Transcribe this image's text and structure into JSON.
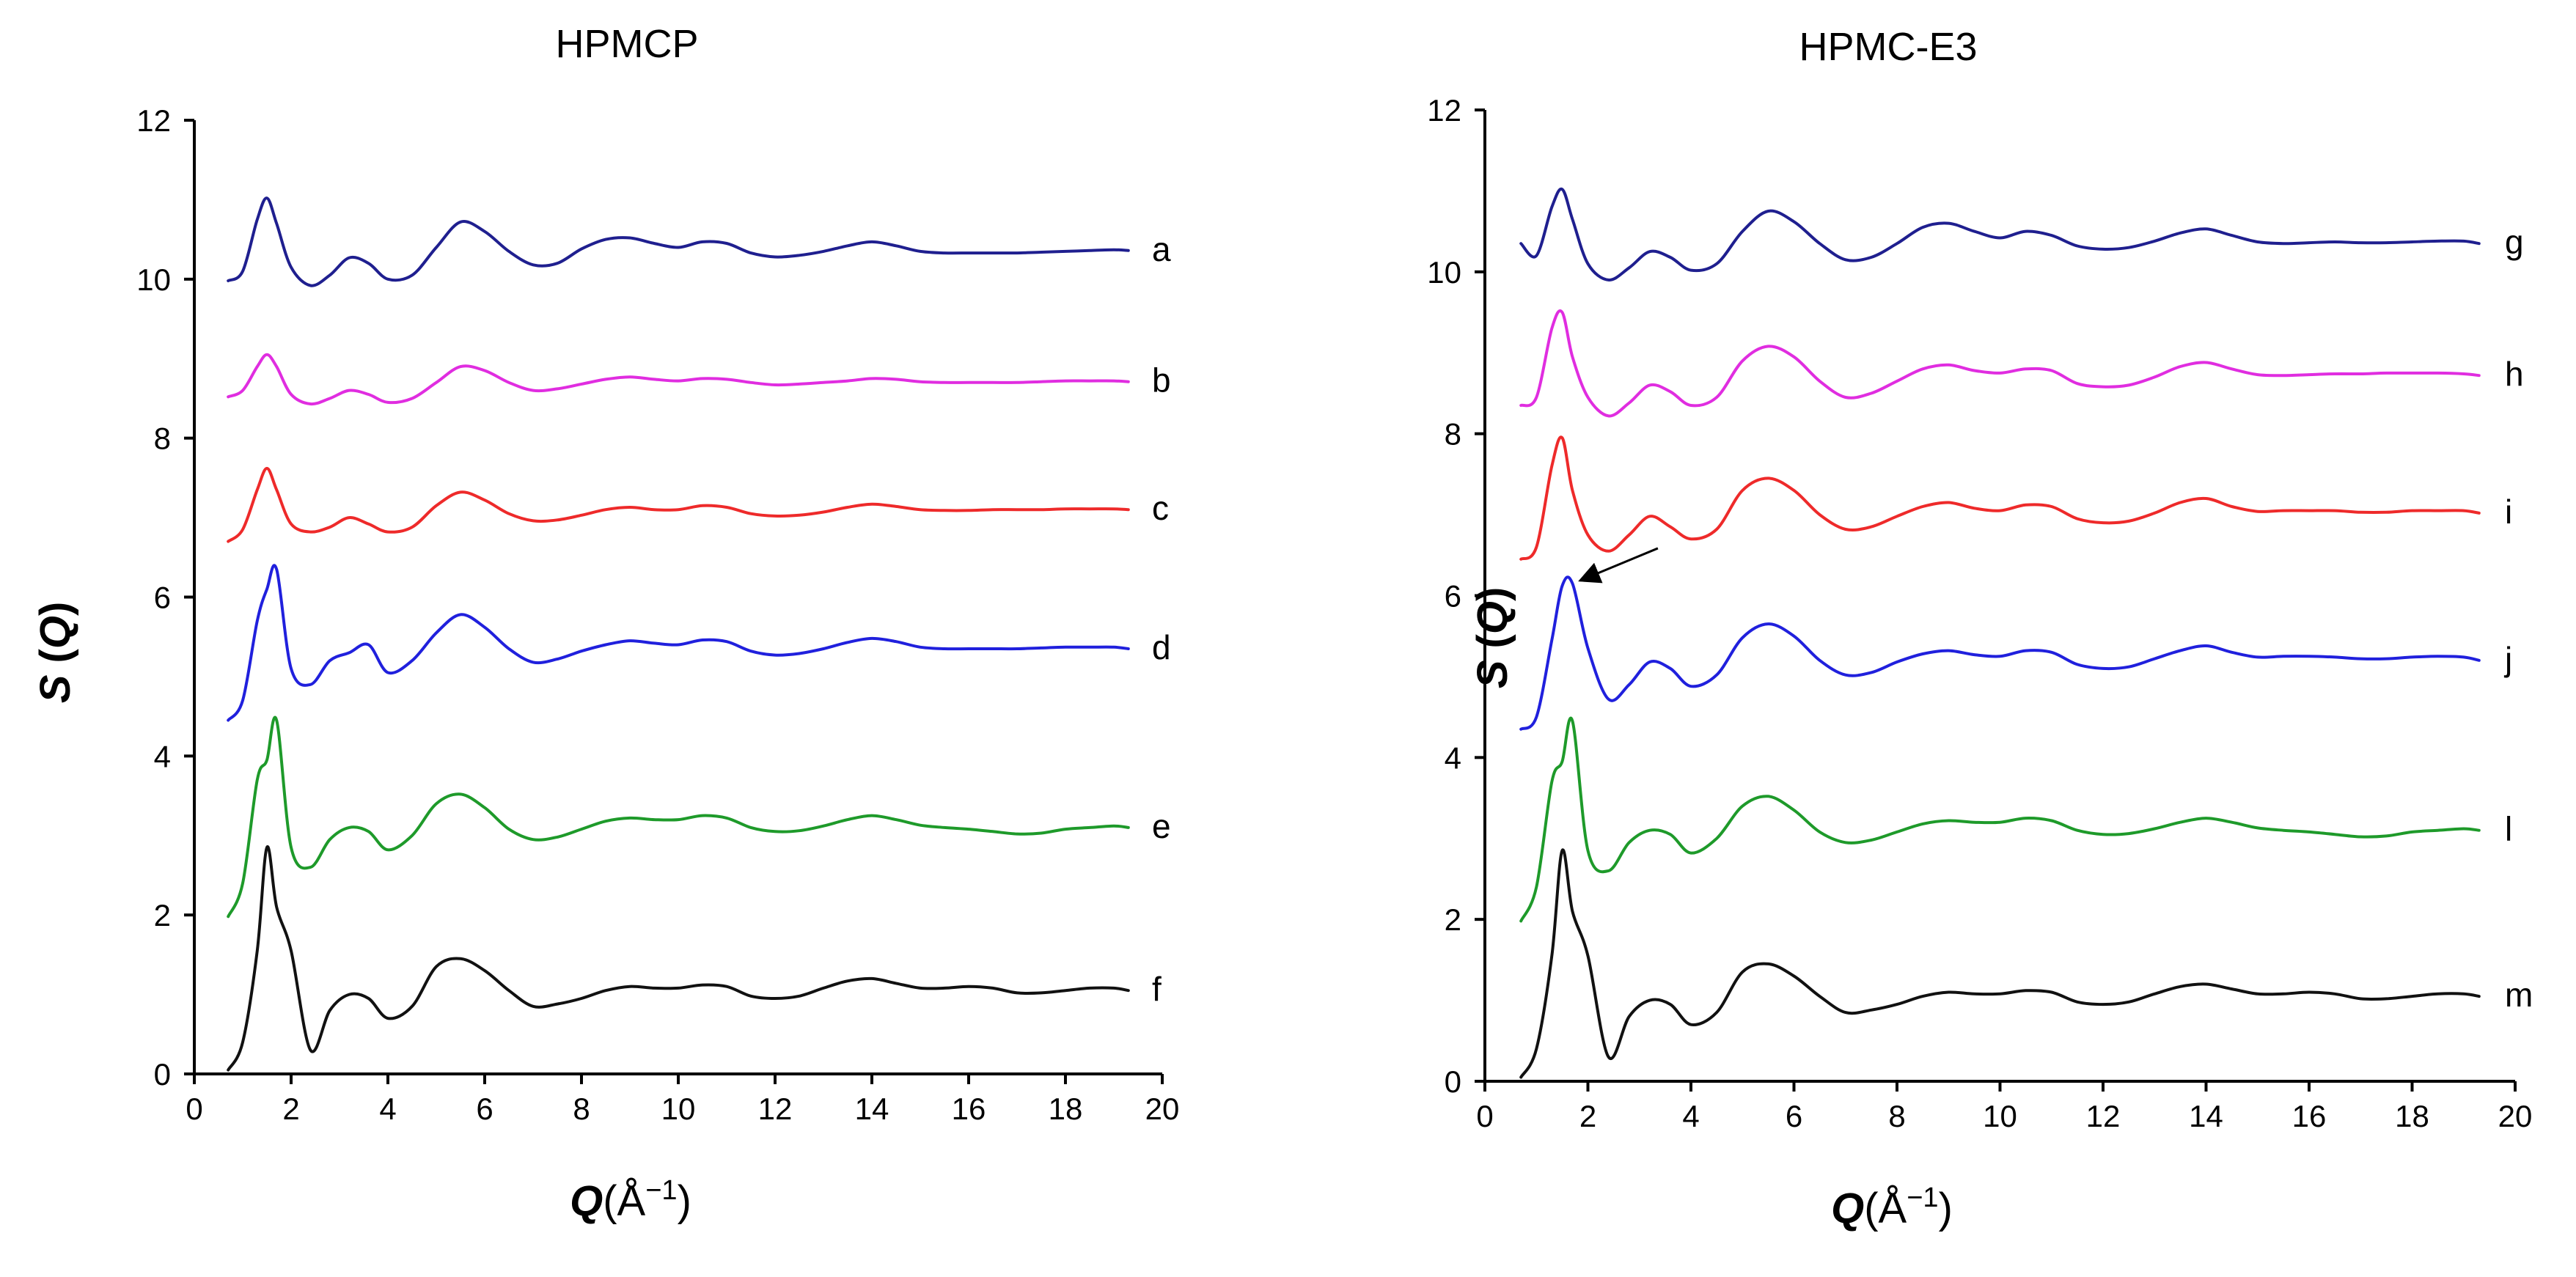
{
  "chart_data": [
    {
      "type": "line",
      "title": "HPMCP",
      "xlabel": {
        "italic": "Q",
        "unit_prefix": "(Å",
        "unit_sup": "−1",
        "unit_suffix": ")"
      },
      "ylabel": {
        "italic1": "S",
        "open": " (",
        "italic2": "Q",
        "close": ")"
      },
      "xlim": [
        0,
        20
      ],
      "ylim": [
        0,
        12
      ],
      "xticks": [
        "0",
        "2",
        "4",
        "6",
        "8",
        "10",
        "12",
        "14",
        "16",
        "18",
        "20"
      ],
      "yticks": [
        "0",
        "2",
        "4",
        "6",
        "8",
        "10",
        "12"
      ],
      "x": [
        0.7,
        1.0,
        1.3,
        1.5,
        1.7,
        2.0,
        2.4,
        2.8,
        3.2,
        3.6,
        4.0,
        4.5,
        5.0,
        5.5,
        6.0,
        6.5,
        7.0,
        7.5,
        8.0,
        8.5,
        9.0,
        9.5,
        10.0,
        10.5,
        11.0,
        11.5,
        12.0,
        12.5,
        13.0,
        13.5,
        14.0,
        14.5,
        15.0,
        15.5,
        16.0,
        16.5,
        17.0,
        17.5,
        18.0,
        18.5,
        19.0,
        19.3
      ],
      "series": [
        {
          "name": "a",
          "color": "#1f1f8f",
          "values": [
            9.98,
            10.1,
            10.75,
            11.02,
            10.7,
            10.15,
            9.92,
            10.05,
            10.27,
            10.2,
            10.0,
            10.05,
            10.4,
            10.72,
            10.6,
            10.35,
            10.18,
            10.2,
            10.38,
            10.5,
            10.52,
            10.45,
            10.4,
            10.47,
            10.45,
            10.33,
            10.28,
            10.3,
            10.35,
            10.42,
            10.47,
            10.42,
            10.35,
            10.33,
            10.33,
            10.33,
            10.33,
            10.34,
            10.35,
            10.36,
            10.37,
            10.36
          ]
        },
        {
          "name": "b",
          "color": "#e02de0",
          "values": [
            8.52,
            8.6,
            8.9,
            9.05,
            8.9,
            8.55,
            8.43,
            8.5,
            8.6,
            8.55,
            8.45,
            8.5,
            8.7,
            8.9,
            8.85,
            8.7,
            8.6,
            8.62,
            8.68,
            8.74,
            8.77,
            8.74,
            8.72,
            8.75,
            8.74,
            8.7,
            8.67,
            8.68,
            8.7,
            8.72,
            8.75,
            8.74,
            8.71,
            8.7,
            8.7,
            8.7,
            8.7,
            8.71,
            8.72,
            8.72,
            8.72,
            8.71
          ]
        },
        {
          "name": "c",
          "color": "#ee2a2a",
          "values": [
            6.7,
            6.85,
            7.35,
            7.62,
            7.35,
            6.92,
            6.82,
            6.88,
            7.0,
            6.92,
            6.82,
            6.88,
            7.15,
            7.32,
            7.22,
            7.05,
            6.96,
            6.97,
            7.03,
            7.1,
            7.13,
            7.1,
            7.1,
            7.15,
            7.13,
            7.05,
            7.02,
            7.03,
            7.07,
            7.13,
            7.17,
            7.14,
            7.1,
            7.09,
            7.09,
            7.1,
            7.1,
            7.1,
            7.11,
            7.11,
            7.11,
            7.1
          ]
        },
        {
          "name": "d",
          "color": "#2020dd",
          "values": [
            4.45,
            4.7,
            5.7,
            6.1,
            6.35,
            5.1,
            4.9,
            5.2,
            5.3,
            5.4,
            5.05,
            5.2,
            5.55,
            5.78,
            5.62,
            5.35,
            5.18,
            5.22,
            5.32,
            5.4,
            5.45,
            5.42,
            5.4,
            5.46,
            5.44,
            5.32,
            5.27,
            5.29,
            5.35,
            5.43,
            5.48,
            5.44,
            5.37,
            5.35,
            5.35,
            5.35,
            5.35,
            5.36,
            5.37,
            5.37,
            5.37,
            5.35
          ]
        },
        {
          "name": "e",
          "color": "#1e9a2a",
          "values": [
            1.98,
            2.4,
            3.7,
            3.95,
            4.45,
            2.85,
            2.6,
            2.95,
            3.1,
            3.05,
            2.82,
            3.0,
            3.4,
            3.52,
            3.35,
            3.08,
            2.95,
            2.98,
            3.08,
            3.18,
            3.22,
            3.2,
            3.2,
            3.25,
            3.22,
            3.1,
            3.05,
            3.06,
            3.12,
            3.2,
            3.25,
            3.2,
            3.13,
            3.1,
            3.08,
            3.05,
            3.02,
            3.03,
            3.08,
            3.1,
            3.12,
            3.1
          ]
        },
        {
          "name": "f",
          "color": "#111111",
          "values": [
            0.05,
            0.4,
            1.55,
            2.85,
            2.1,
            1.55,
            0.3,
            0.8,
            1.0,
            0.95,
            0.7,
            0.85,
            1.35,
            1.45,
            1.3,
            1.05,
            0.85,
            0.88,
            0.95,
            1.05,
            1.1,
            1.08,
            1.08,
            1.12,
            1.1,
            0.98,
            0.95,
            0.98,
            1.08,
            1.17,
            1.2,
            1.14,
            1.08,
            1.08,
            1.1,
            1.08,
            1.02,
            1.02,
            1.05,
            1.08,
            1.08,
            1.05
          ]
        }
      ]
    },
    {
      "type": "line",
      "title": "HPMC-E3",
      "xlabel": {
        "italic": "Q",
        "unit_prefix": "(Å",
        "unit_sup": "−1",
        "unit_suffix": ")"
      },
      "ylabel": {
        "italic1": "S",
        "open": " (",
        "italic2": "Q",
        "close": ")"
      },
      "xlim": [
        0,
        20
      ],
      "ylim": [
        0,
        12
      ],
      "xticks": [
        "0",
        "2",
        "4",
        "6",
        "8",
        "10",
        "12",
        "14",
        "16",
        "18",
        "20"
      ],
      "yticks": [
        "0",
        "2",
        "4",
        "6",
        "8",
        "10",
        "12"
      ],
      "x": [
        0.7,
        1.0,
        1.3,
        1.5,
        1.7,
        2.0,
        2.4,
        2.8,
        3.2,
        3.6,
        4.0,
        4.5,
        5.0,
        5.5,
        6.0,
        6.5,
        7.0,
        7.5,
        8.0,
        8.5,
        9.0,
        9.5,
        10.0,
        10.5,
        11.0,
        11.5,
        12.0,
        12.5,
        13.0,
        13.5,
        14.0,
        14.5,
        15.0,
        15.5,
        16.0,
        16.5,
        17.0,
        17.5,
        18.0,
        18.5,
        19.0,
        19.3
      ],
      "series": [
        {
          "name": "g",
          "color": "#1f1f8f",
          "values": [
            10.35,
            10.2,
            10.8,
            11.02,
            10.65,
            10.1,
            9.9,
            10.05,
            10.25,
            10.18,
            10.02,
            10.1,
            10.5,
            10.75,
            10.62,
            10.35,
            10.15,
            10.18,
            10.35,
            10.55,
            10.6,
            10.5,
            10.42,
            10.5,
            10.45,
            10.32,
            10.28,
            10.3,
            10.38,
            10.48,
            10.53,
            10.45,
            10.37,
            10.35,
            10.36,
            10.37,
            10.36,
            10.36,
            10.37,
            10.38,
            10.38,
            10.35
          ]
        },
        {
          "name": "h",
          "color": "#e02de0",
          "values": [
            8.35,
            8.45,
            9.3,
            9.5,
            8.95,
            8.45,
            8.22,
            8.38,
            8.6,
            8.52,
            8.35,
            8.45,
            8.9,
            9.08,
            8.95,
            8.65,
            8.45,
            8.5,
            8.65,
            8.8,
            8.85,
            8.78,
            8.75,
            8.8,
            8.78,
            8.62,
            8.58,
            8.6,
            8.7,
            8.83,
            8.88,
            8.8,
            8.73,
            8.72,
            8.73,
            8.74,
            8.74,
            8.75,
            8.75,
            8.75,
            8.74,
            8.72
          ]
        },
        {
          "name": "i",
          "color": "#ee2a2a",
          "values": [
            6.45,
            6.6,
            7.6,
            7.95,
            7.3,
            6.75,
            6.55,
            6.75,
            6.98,
            6.85,
            6.7,
            6.82,
            7.3,
            7.45,
            7.3,
            7.0,
            6.82,
            6.85,
            6.98,
            7.1,
            7.15,
            7.08,
            7.05,
            7.12,
            7.1,
            6.95,
            6.9,
            6.92,
            7.02,
            7.15,
            7.2,
            7.1,
            7.04,
            7.05,
            7.05,
            7.05,
            7.03,
            7.03,
            7.05,
            7.05,
            7.05,
            7.02
          ]
        },
        {
          "name": "j",
          "color": "#2020dd",
          "values": [
            4.35,
            4.5,
            5.45,
            6.12,
            6.15,
            5.35,
            4.72,
            4.9,
            5.18,
            5.1,
            4.88,
            5.02,
            5.48,
            5.65,
            5.5,
            5.2,
            5.02,
            5.05,
            5.18,
            5.28,
            5.32,
            5.27,
            5.25,
            5.32,
            5.3,
            5.15,
            5.1,
            5.12,
            5.22,
            5.32,
            5.38,
            5.3,
            5.24,
            5.25,
            5.25,
            5.24,
            5.22,
            5.22,
            5.24,
            5.25,
            5.24,
            5.2
          ]
        },
        {
          "name": "l",
          "color": "#1e9a2a",
          "values": [
            1.98,
            2.4,
            3.7,
            3.95,
            4.45,
            2.85,
            2.6,
            2.95,
            3.1,
            3.05,
            2.82,
            3.0,
            3.4,
            3.52,
            3.35,
            3.08,
            2.95,
            2.98,
            3.08,
            3.18,
            3.22,
            3.2,
            3.2,
            3.25,
            3.22,
            3.1,
            3.05,
            3.06,
            3.12,
            3.2,
            3.25,
            3.2,
            3.13,
            3.1,
            3.08,
            3.05,
            3.02,
            3.03,
            3.08,
            3.1,
            3.12,
            3.1
          ]
        },
        {
          "name": "m",
          "color": "#111111",
          "values": [
            0.05,
            0.4,
            1.55,
            2.85,
            2.1,
            1.55,
            0.3,
            0.8,
            1.0,
            0.95,
            0.7,
            0.85,
            1.35,
            1.45,
            1.3,
            1.05,
            0.85,
            0.88,
            0.95,
            1.05,
            1.1,
            1.08,
            1.08,
            1.12,
            1.1,
            0.98,
            0.95,
            0.98,
            1.08,
            1.17,
            1.2,
            1.14,
            1.08,
            1.08,
            1.1,
            1.08,
            1.02,
            1.02,
            1.05,
            1.08,
            1.08,
            1.05
          ]
        }
      ],
      "annotations": [
        {
          "type": "arrow",
          "target_series": "j",
          "x": 1.65,
          "y": 6.15
        }
      ]
    }
  ]
}
